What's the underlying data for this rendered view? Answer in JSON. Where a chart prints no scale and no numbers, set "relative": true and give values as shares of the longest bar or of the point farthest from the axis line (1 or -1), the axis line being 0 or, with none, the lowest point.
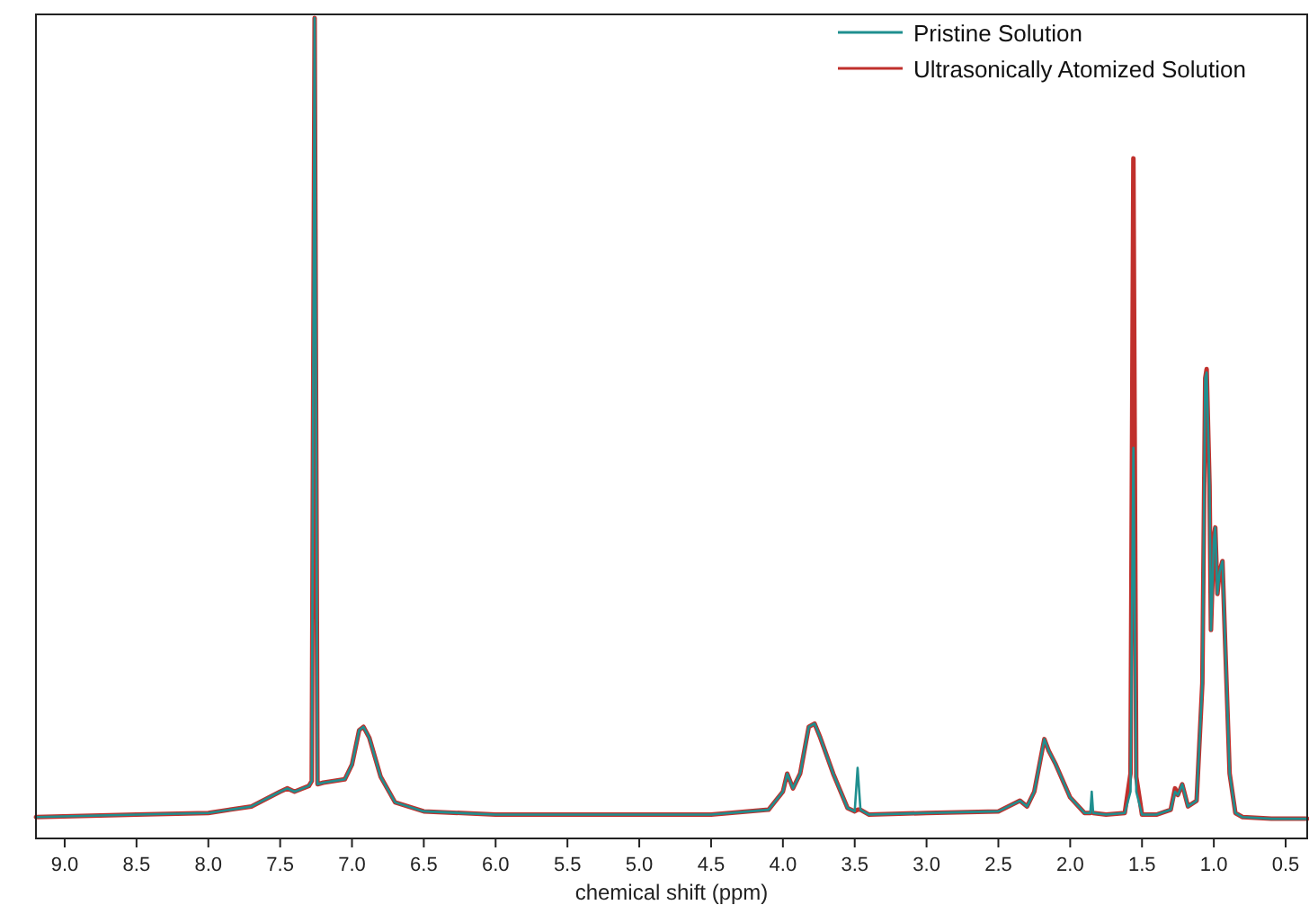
{
  "chart_data": {
    "type": "line",
    "relative": true,
    "xlabel": "chemical shift (ppm)",
    "xlim": [
      9.2,
      0.35
    ],
    "xticks": [
      {
        "value": 9,
        "label": "9.0"
      },
      {
        "value": 8.5,
        "label": "8.5"
      },
      {
        "value": 8,
        "label": "8.0"
      },
      {
        "value": 7.5,
        "label": "7.5"
      },
      {
        "value": 7,
        "label": "7.0"
      },
      {
        "value": 6.5,
        "label": "6.5"
      },
      {
        "value": 6,
        "label": "6.0"
      },
      {
        "value": 5.5,
        "label": "5.5"
      },
      {
        "value": 5,
        "label": "5.0"
      },
      {
        "value": 4.5,
        "label": "4.5"
      },
      {
        "value": 4,
        "label": "4.0"
      },
      {
        "value": 3.5,
        "label": "3.5"
      },
      {
        "value": 3,
        "label": "3.0"
      },
      {
        "value": 2.5,
        "label": "2.5"
      },
      {
        "value": 2,
        "label": "2.0"
      },
      {
        "value": 1.5,
        "label": "1.5"
      },
      {
        "value": 1,
        "label": "1.0"
      },
      {
        "value": 0.5,
        "label": "0.5"
      }
    ],
    "x": [
      9.2,
      8.5,
      8.0,
      7.7,
      7.5,
      7.45,
      7.4,
      7.3,
      7.28,
      7.26,
      7.24,
      7.2,
      7.05,
      7.0,
      6.95,
      6.92,
      6.88,
      6.8,
      6.7,
      6.5,
      6.0,
      5.0,
      4.5,
      4.1,
      4.0,
      3.97,
      3.93,
      3.88,
      3.82,
      3.78,
      3.74,
      3.65,
      3.55,
      3.5,
      3.48,
      3.46,
      3.4,
      3.0,
      2.5,
      2.35,
      2.3,
      2.25,
      2.18,
      2.15,
      2.1,
      2.0,
      1.9,
      1.86,
      1.85,
      1.84,
      1.75,
      1.62,
      1.58,
      1.56,
      1.54,
      1.5,
      1.4,
      1.3,
      1.27,
      1.25,
      1.22,
      1.18,
      1.12,
      1.08,
      1.06,
      1.05,
      1.03,
      1.02,
      1.0,
      0.99,
      0.975,
      0.96,
      0.94,
      0.92,
      0.89,
      0.85,
      0.8,
      0.6,
      0.35
    ],
    "series": [
      {
        "name": "Pristine Solution",
        "color": "#1f8f8f",
        "values": [
          0.026,
          0.029,
          0.031,
          0.039,
          0.057,
          0.061,
          0.057,
          0.064,
          0.07,
          1.0,
          0.066,
          0.068,
          0.072,
          0.09,
          0.132,
          0.136,
          0.123,
          0.075,
          0.044,
          0.033,
          0.029,
          0.029,
          0.029,
          0.035,
          0.057,
          0.079,
          0.061,
          0.079,
          0.136,
          0.14,
          0.123,
          0.079,
          0.037,
          0.033,
          0.086,
          0.035,
          0.029,
          0.031,
          0.033,
          0.046,
          0.039,
          0.057,
          0.121,
          0.107,
          0.09,
          0.05,
          0.031,
          0.031,
          0.057,
          0.031,
          0.029,
          0.031,
          0.057,
          0.476,
          0.057,
          0.029,
          0.029,
          0.035,
          0.057,
          0.053,
          0.066,
          0.039,
          0.046,
          0.189,
          0.561,
          0.568,
          0.43,
          0.254,
          0.364,
          0.379,
          0.298,
          0.325,
          0.338,
          0.232,
          0.079,
          0.031,
          0.026,
          0.024,
          0.024
        ]
      },
      {
        "name": "Ultrasonically Atomized Solution",
        "color": "#c0302c",
        "values": [
          0.026,
          0.029,
          0.031,
          0.039,
          0.057,
          0.061,
          0.057,
          0.064,
          0.07,
          1.0,
          0.066,
          0.068,
          0.072,
          0.09,
          0.132,
          0.136,
          0.123,
          0.075,
          0.044,
          0.033,
          0.029,
          0.029,
          0.029,
          0.035,
          0.057,
          0.079,
          0.061,
          0.079,
          0.136,
          0.14,
          0.123,
          0.079,
          0.037,
          0.033,
          0.035,
          0.035,
          0.029,
          0.031,
          0.033,
          0.046,
          0.039,
          0.057,
          0.121,
          0.107,
          0.09,
          0.05,
          0.031,
          0.031,
          0.033,
          0.031,
          0.029,
          0.031,
          0.079,
          0.829,
          0.075,
          0.029,
          0.029,
          0.035,
          0.061,
          0.053,
          0.066,
          0.039,
          0.046,
          0.189,
          0.561,
          0.572,
          0.43,
          0.254,
          0.368,
          0.379,
          0.298,
          0.325,
          0.338,
          0.232,
          0.079,
          0.031,
          0.026,
          0.024,
          0.024
        ]
      }
    ],
    "legend": "top right",
    "grid": false,
    "marker": "none",
    "line_style": "solid"
  }
}
